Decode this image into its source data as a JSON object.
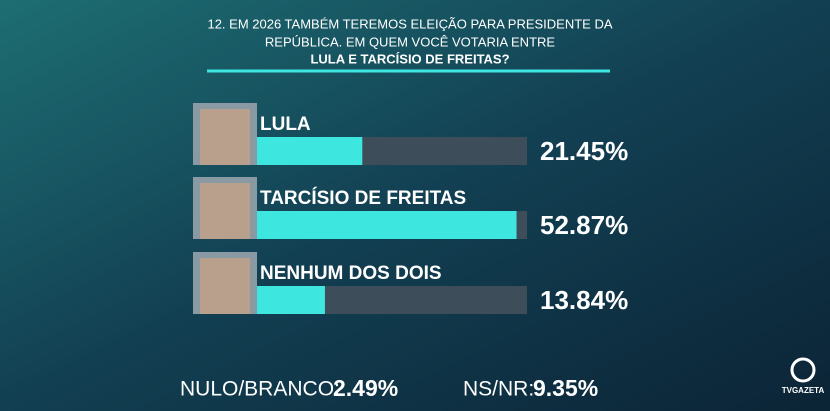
{
  "title_lines": [
    "12. EM 2026 TAMBÉM TEREMOS ELEIÇÃO PARA PRESIDENTE DA",
    "REPÚBLICA. EM QUEM VOCÊ VOTARIA ENTRE",
    "LULA E TARCÍSIO DE FREITAS?"
  ],
  "chart_data": {
    "type": "bar",
    "orientation": "horizontal",
    "categories": [
      "LULA",
      "TARCÍSIO DE FREITAS",
      "NENHUM DOS DOIS"
    ],
    "values": [
      21.45,
      52.87,
      13.84
    ],
    "value_labels": [
      "21.45%",
      "52.87%",
      "13.84%"
    ],
    "color": "#3ee6e0",
    "xlim": [
      0,
      55
    ]
  },
  "extras": [
    {
      "label": "NULO/BRANCO:",
      "value": 2.49,
      "value_label": "2.49%"
    },
    {
      "label": "NS/NR:",
      "value": 9.35,
      "value_label": "9.35%"
    }
  ],
  "logo": "TVGAZETA"
}
